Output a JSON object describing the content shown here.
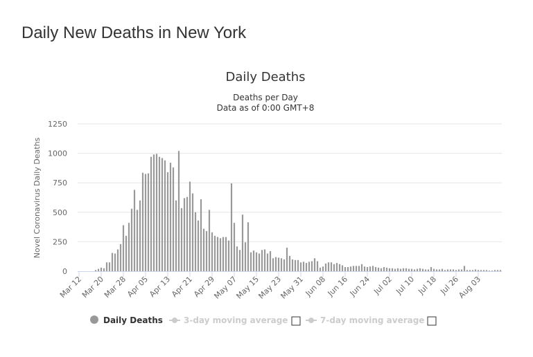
{
  "page": {
    "title": "Daily New Deaths in New York"
  },
  "colors": {
    "bar": "#999999",
    "grid": "#e6e6e6",
    "legend_active": "#333333",
    "legend_inactive": "#cccccc"
  },
  "chart_data": {
    "type": "bar",
    "title": "Daily Deaths",
    "subtitle_lines": [
      "Deaths per Day",
      "Data as of 0:00 GMT+8"
    ],
    "ylabel": "Novel Coronavirus Daily Deaths",
    "xlabel": "",
    "ylim": [
      0,
      1250
    ],
    "yticks": [
      0,
      250,
      500,
      750,
      1000,
      1250
    ],
    "grid": true,
    "legend_position": "bottom",
    "x_start": "2020-03-12",
    "x_ticks": [
      "Mar 12",
      "Mar 20",
      "Mar 28",
      "Apr 05",
      "Apr 13",
      "Apr 21",
      "Apr 29",
      "May 07",
      "May 15",
      "May 23",
      "May 31",
      "Jun 08",
      "Jun 16",
      "Jun 24",
      "Jul 02",
      "Jul 10",
      "Jul 18",
      "Jul 26",
      "Aug 03"
    ],
    "series": [
      {
        "name": "Daily Deaths",
        "values": [
          0,
          0,
          0,
          0,
          0,
          0,
          10,
          20,
          30,
          25,
          75,
          75,
          155,
          150,
          185,
          230,
          390,
          300,
          410,
          530,
          690,
          520,
          600,
          835,
          825,
          830,
          970,
          990,
          995,
          970,
          960,
          940,
          840,
          920,
          880,
          600,
          1020,
          535,
          620,
          630,
          760,
          660,
          500,
          430,
          610,
          360,
          340,
          520,
          330,
          300,
          290,
          280,
          290,
          290,
          260,
          745,
          410,
          210,
          180,
          480,
          245,
          415,
          160,
          175,
          160,
          150,
          180,
          185,
          150,
          170,
          110,
          120,
          115,
          110,
          100,
          200,
          130,
          100,
          95,
          95,
          75,
          80,
          70,
          80,
          85,
          110,
          85,
          30,
          40,
          65,
          75,
          75,
          60,
          70,
          60,
          50,
          35,
          35,
          40,
          45,
          45,
          45,
          60,
          40,
          35,
          40,
          45,
          35,
          30,
          25,
          35,
          30,
          25,
          25,
          20,
          25,
          20,
          25,
          25,
          20,
          20,
          15,
          20,
          25,
          20,
          15,
          15,
          35,
          20,
          15,
          15,
          20,
          10,
          15,
          15,
          15,
          10,
          15,
          15,
          45,
          10,
          10,
          10,
          15,
          10,
          10,
          10,
          10,
          5,
          5,
          10,
          10,
          10
        ]
      },
      {
        "name": "3-day moving average",
        "values": []
      },
      {
        "name": "7-day moving average",
        "values": []
      }
    ]
  }
}
